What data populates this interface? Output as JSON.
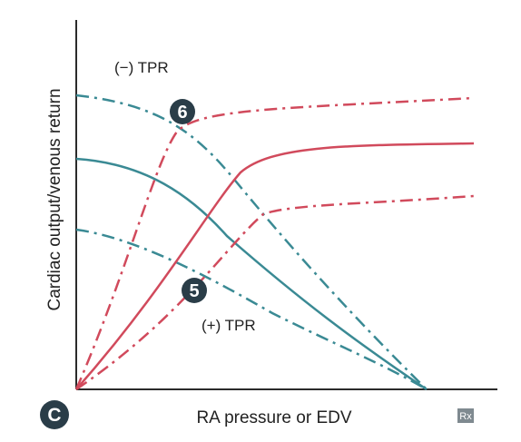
{
  "figure": {
    "panel_label": "C",
    "x_axis_label": "RA pressure or EDV",
    "y_axis_label": "Cardiac output/venous return",
    "neg_tpr_label": "(−) TPR",
    "pos_tpr_label": "(+) TPR",
    "marker_6": "6",
    "marker_5": "5",
    "logo_text": "Rx",
    "colors": {
      "cardiac_output": "#d14a5c",
      "venous_return": "#3a8a94",
      "badge": "#2a3d48",
      "axis": "#2b2b2b",
      "logo": "#7f8a90"
    }
  }
}
